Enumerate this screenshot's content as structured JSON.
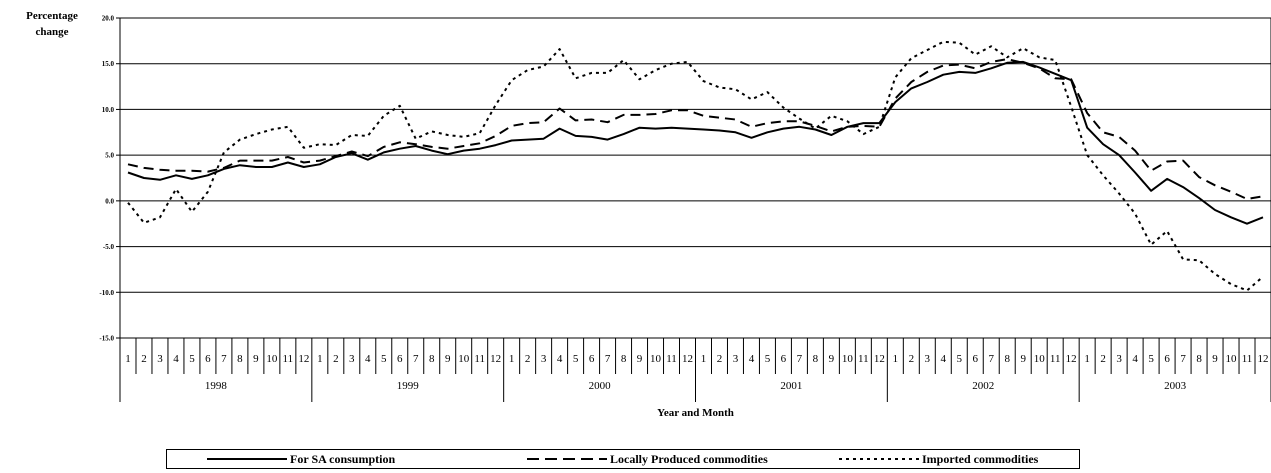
{
  "chart_data": {
    "type": "line",
    "ylabel_lines": [
      "Percentage",
      "change"
    ],
    "xlabel": "Year and Month",
    "ylim": [
      -15,
      20
    ],
    "yticks": [
      20.0,
      15.0,
      10.0,
      5.0,
      0.0,
      -5.0,
      -10.0,
      -15.0
    ],
    "ytick_labels": [
      "20.0",
      "15.0",
      "10.0",
      "5.0",
      "0.0",
      "-5.0",
      "-10.0",
      "-15.0"
    ],
    "grid": "horizontal",
    "years": [
      "1998",
      "1999",
      "2000",
      "2001",
      "2002",
      "2003"
    ],
    "months": [
      "1",
      "2",
      "3",
      "4",
      "5",
      "6",
      "7",
      "8",
      "9",
      "10",
      "11",
      "12"
    ],
    "legend_position": "bottom",
    "series": [
      {
        "name": "For SA consumption",
        "style": "solid",
        "values": [
          3.1,
          2.5,
          2.3,
          2.8,
          2.4,
          2.8,
          3.5,
          3.9,
          3.7,
          3.7,
          4.2,
          3.7,
          4.0,
          4.8,
          5.2,
          4.5,
          5.3,
          5.7,
          6.0,
          5.5,
          5.1,
          5.5,
          5.7,
          6.1,
          6.6,
          6.7,
          6.8,
          7.9,
          7.1,
          7.0,
          6.7,
          7.3,
          8.0,
          7.9,
          8.0,
          7.9,
          7.8,
          7.7,
          7.5,
          6.9,
          7.5,
          7.9,
          8.1,
          7.8,
          7.2,
          8.1,
          8.5,
          8.5,
          10.8,
          12.3,
          13.0,
          13.8,
          14.1,
          14.0,
          14.5,
          15.1,
          15.2,
          14.6,
          13.9,
          13.2,
          8.0,
          6.2,
          5.0,
          3.1,
          1.1,
          2.4,
          1.5,
          0.3,
          -1.0,
          -1.8,
          -2.5,
          -1.8
        ]
      },
      {
        "name": "Locally Produced commodities",
        "style": "dashed",
        "values": [
          4.0,
          3.6,
          3.4,
          3.3,
          3.3,
          3.2,
          3.6,
          4.4,
          4.4,
          4.4,
          4.8,
          4.2,
          4.4,
          4.9,
          5.4,
          4.9,
          5.9,
          6.4,
          6.2,
          5.9,
          5.7,
          6.0,
          6.3,
          7.1,
          8.2,
          8.5,
          8.6,
          10.1,
          8.8,
          8.9,
          8.6,
          9.4,
          9.4,
          9.5,
          9.9,
          9.9,
          9.3,
          9.1,
          8.9,
          8.1,
          8.5,
          8.7,
          8.7,
          8.2,
          7.6,
          8.1,
          8.2,
          8.1,
          11.2,
          13.0,
          14.1,
          14.8,
          14.9,
          14.5,
          15.2,
          15.5,
          15.1,
          14.5,
          13.4,
          13.3,
          9.6,
          7.5,
          7.0,
          5.5,
          3.3,
          4.3,
          4.4,
          2.6,
          1.7,
          1.0,
          0.2,
          0.5
        ]
      },
      {
        "name": "Imported commodities",
        "style": "dotted",
        "values": [
          -0.2,
          -2.4,
          -1.8,
          1.3,
          -1.2,
          1.0,
          5.3,
          6.7,
          7.3,
          7.8,
          8.1,
          5.8,
          6.2,
          6.1,
          7.2,
          7.1,
          9.3,
          10.4,
          6.8,
          7.6,
          7.2,
          7.0,
          7.4,
          10.5,
          13.2,
          14.3,
          14.7,
          16.6,
          13.4,
          14.0,
          14.0,
          15.4,
          13.3,
          14.3,
          15.0,
          15.2,
          13.1,
          12.4,
          12.2,
          11.1,
          11.9,
          10.2,
          9.0,
          7.9,
          9.3,
          8.7,
          7.3,
          8.1,
          13.5,
          15.6,
          16.5,
          17.4,
          17.3,
          16.0,
          16.9,
          15.7,
          16.7,
          15.7,
          15.4,
          10.3,
          5.0,
          2.8,
          0.8,
          -1.4,
          -4.8,
          -3.3,
          -6.4,
          -6.5,
          -8.0,
          -9.1,
          -9.8,
          -8.3
        ]
      }
    ]
  }
}
